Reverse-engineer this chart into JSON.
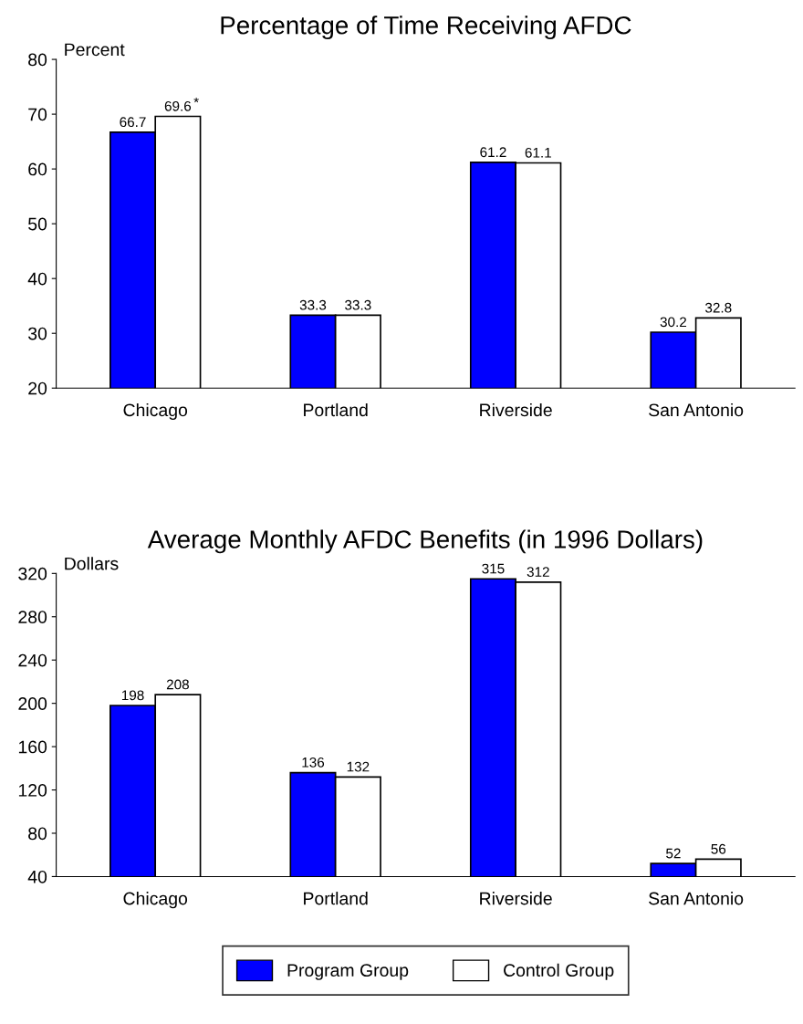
{
  "chart_data": [
    {
      "type": "bar",
      "title": "Percentage of Time Receiving AFDC",
      "ylabel": "Percent",
      "categories": [
        "Chicago",
        "Portland",
        "Riverside",
        "San Antonio"
      ],
      "series": [
        {
          "color": "#0000ff",
          "values": [
            66.7,
            33.3,
            61.2,
            30.2
          ]
        },
        {
          "color": "#ffffff",
          "values": [
            69.6,
            33.3,
            61.1,
            32.8
          ]
        }
      ],
      "ylim": [
        20,
        80
      ],
      "yticks": [
        20,
        30,
        40,
        50,
        60,
        70,
        80
      ],
      "data_labels": true,
      "grid": false,
      "annotations": [
        {
          "text": "*",
          "x": "Chicago",
          "y": 69.6
        }
      ]
    },
    {
      "type": "bar",
      "title": "Average Monthly AFDC Benefits (in 1996 Dollars)",
      "ylabel": "Dollars",
      "categories": [
        "Chicago",
        "Portland",
        "Riverside",
        "San Antonio"
      ],
      "series": [
        {
          "name": "Program Group",
          "color": "#0000ff",
          "values": [
            198,
            136,
            315,
            52
          ]
        },
        {
          "name": "Control Group",
          "color": "#ffffff",
          "values": [
            208,
            132,
            312,
            56
          ]
        }
      ],
      "ylim": [
        40,
        320
      ],
      "yticks": [
        40,
        80,
        120,
        160,
        200,
        240,
        280,
        320
      ],
      "data_labels": true,
      "grid": false,
      "legend": "bottom"
    }
  ]
}
